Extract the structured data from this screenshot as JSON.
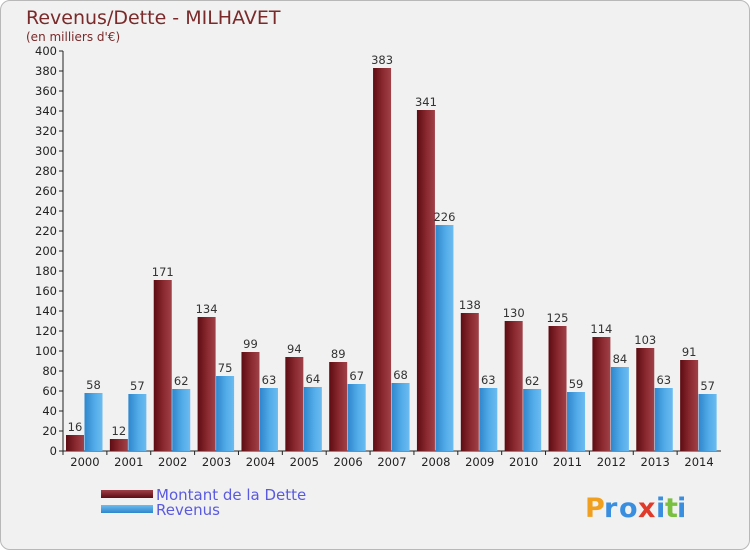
{
  "chart_data": {
    "type": "bar",
    "title": "Revenus/Dette - MILHAVET",
    "subtitle": "(en milliers d'€)",
    "categories": [
      "2000",
      "2001",
      "2002",
      "2003",
      "2004",
      "2005",
      "2006",
      "2007",
      "2008",
      "2009",
      "2010",
      "2011",
      "2012",
      "2013",
      "2014"
    ],
    "series": [
      {
        "name": "Montant de la Dette",
        "color": "#7a1f24",
        "values": [
          16,
          12,
          171,
          134,
          99,
          94,
          89,
          383,
          341,
          138,
          130,
          125,
          114,
          103,
          91
        ]
      },
      {
        "name": "Revenus",
        "color": "#3a98dc",
        "values": [
          58,
          57,
          62,
          75,
          63,
          64,
          67,
          68,
          226,
          63,
          62,
          59,
          84,
          63,
          57
        ]
      }
    ],
    "ylim": [
      0,
      400
    ],
    "ytick_step": 20,
    "yticks": [
      "0",
      "20",
      "40",
      "60",
      "80",
      "100",
      "120",
      "140",
      "160",
      "180",
      "200",
      "220",
      "240",
      "260",
      "280",
      "300",
      "320",
      "340",
      "360",
      "380",
      "400"
    ],
    "xlabel": "",
    "ylabel": "",
    "grid": false,
    "legend": "bottom-left"
  },
  "branding": {
    "logo_text": "Proxiti"
  }
}
